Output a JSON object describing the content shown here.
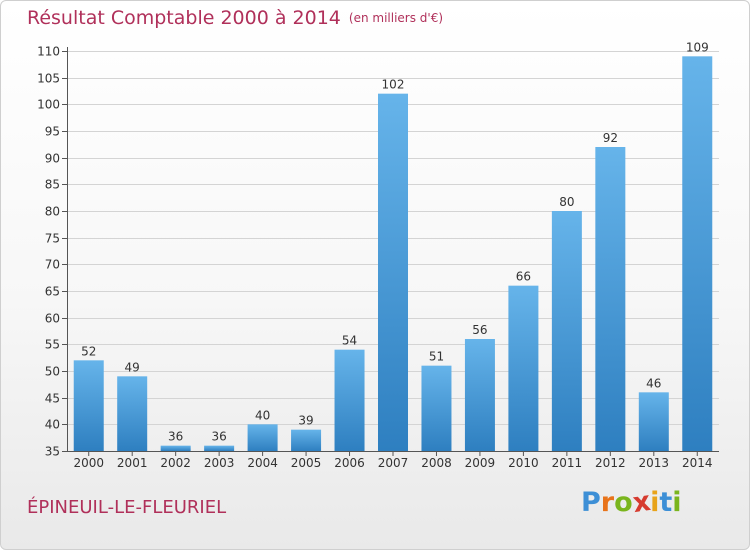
{
  "title": "Résultat Comptable 2000 à 2014",
  "subtitle": "(en milliers d'€)",
  "commune": "ÉPINEUIL-LE-FLEURIEL",
  "brand": {
    "letters": [
      "P",
      "r",
      "o",
      "x",
      "i",
      "t",
      "i"
    ],
    "colors": [
      "#3d8fd6",
      "#e8731a",
      "#7ab51d",
      "#d63b2f",
      "#e8a31a",
      "#3d8fd6",
      "#7ab51d"
    ]
  },
  "colors": {
    "bar_light": "#66b4ea",
    "bar_dark": "#2e7fc0",
    "title": "#b0305a",
    "grid": "#d4d4d4",
    "axis": "#555555"
  },
  "chart_data": {
    "type": "bar",
    "title": "Résultat Comptable 2000 à 2014",
    "ylabel": "en milliers d'€",
    "xlabel": "",
    "categories": [
      "2000",
      "2001",
      "2002",
      "2003",
      "2004",
      "2005",
      "2006",
      "2007",
      "2008",
      "2009",
      "2010",
      "2011",
      "2012",
      "2013",
      "2014"
    ],
    "values": [
      52,
      49,
      36,
      36,
      40,
      39,
      54,
      102,
      51,
      56,
      66,
      80,
      92,
      46,
      109
    ],
    "ylim": [
      35,
      110
    ],
    "yticks": [
      35,
      40,
      45,
      50,
      55,
      60,
      65,
      70,
      75,
      80,
      85,
      90,
      95,
      100,
      105,
      110
    ],
    "grid": true
  }
}
